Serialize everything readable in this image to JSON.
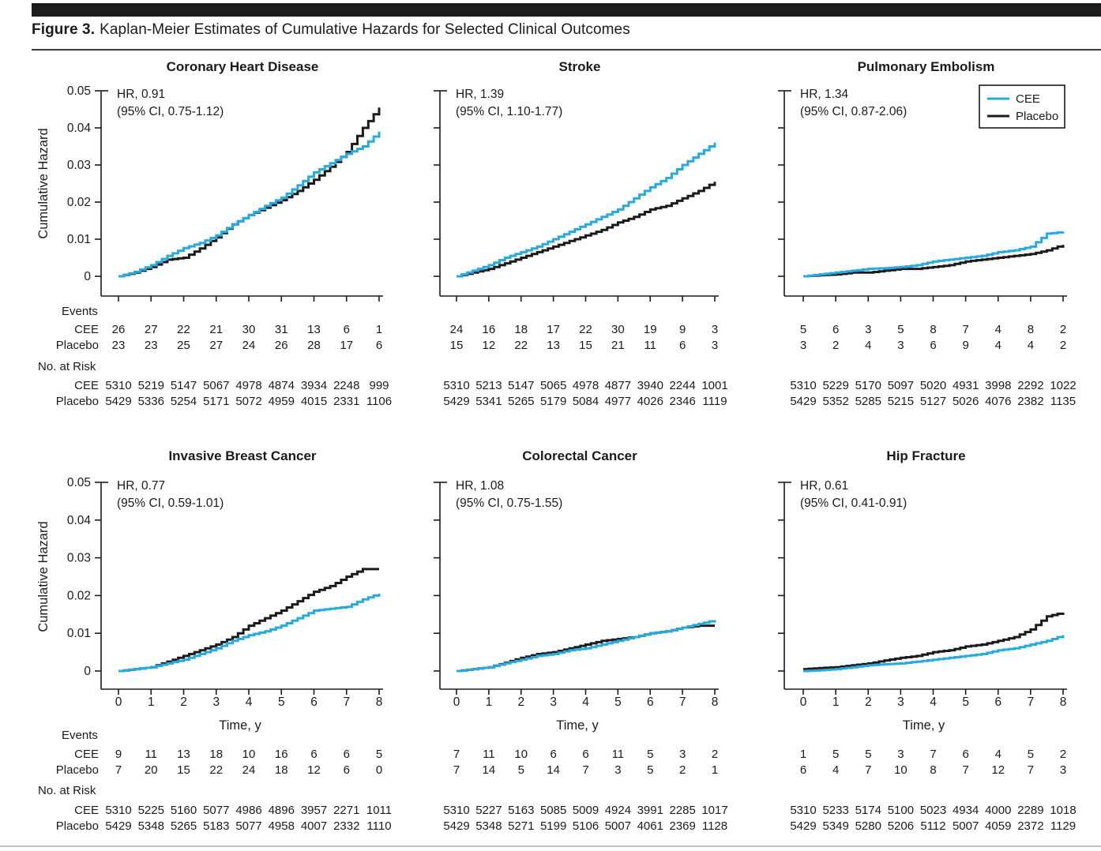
{
  "figure": {
    "label": "Figure 3.",
    "title": "Kaplan-Meier Estimates of Cumulative Hazards for Selected Clinical Outcomes"
  },
  "colors": {
    "cee": "#29A9DC",
    "placebo": "#1b1b1b",
    "axis": "#1b1b1b"
  },
  "legend": {
    "cee": "CEE",
    "placebo": "Placebo",
    "position": "top-right-of-pulmonary-embolism-panel"
  },
  "labels": {
    "events": "Events",
    "cee": "CEE",
    "placebo": "Placebo",
    "no_at_risk": "No. at Risk",
    "ylabel": "Cumulative Hazard",
    "xlabel": "Time, y"
  },
  "axes": {
    "ylim": [
      0,
      0.05
    ],
    "yticks": [
      "0",
      "0.01",
      "0.02",
      "0.03",
      "0.04",
      "0.05"
    ],
    "xlim": [
      0,
      8
    ],
    "xticks": [
      "0",
      "1",
      "2",
      "3",
      "4",
      "5",
      "6",
      "7",
      "8"
    ],
    "grid": "off"
  },
  "chart_data": [
    {
      "id": "coronary-heart-disease",
      "title": "Coronary Heart Disease",
      "type": "line",
      "hr": "HR, 0.91",
      "ci": "(95% CI, 0.75-1.12)",
      "x": [
        0,
        0.5,
        1,
        1.5,
        2,
        2.5,
        3,
        3.5,
        4,
        4.5,
        5,
        5.5,
        6,
        6.5,
        7,
        7.5,
        8
      ],
      "series": [
        {
          "name": "CEE",
          "values": [
            0,
            0.0012,
            0.003,
            0.0055,
            0.0076,
            0.009,
            0.011,
            0.014,
            0.0165,
            0.019,
            0.0212,
            0.0245,
            0.028,
            0.0305,
            0.033,
            0.035,
            0.039
          ]
        },
        {
          "name": "Placebo",
          "values": [
            0,
            0.001,
            0.0025,
            0.0045,
            0.005,
            0.0075,
            0.0105,
            0.014,
            0.0165,
            0.0185,
            0.0205,
            0.023,
            0.026,
            0.0295,
            0.0335,
            0.04,
            0.0455
          ]
        }
      ],
      "events": {
        "CEE": [
          26,
          27,
          22,
          21,
          30,
          31,
          13,
          6,
          1
        ],
        "Placebo": [
          23,
          23,
          25,
          27,
          24,
          26,
          28,
          17,
          6
        ]
      },
      "no_at_risk": {
        "CEE": [
          5310,
          5219,
          5147,
          5067,
          4978,
          4874,
          3934,
          2248,
          999
        ],
        "Placebo": [
          5429,
          5336,
          5254,
          5171,
          5072,
          4959,
          4015,
          2331,
          1106
        ]
      }
    },
    {
      "id": "stroke",
      "title": "Stroke",
      "type": "line",
      "hr": "HR, 1.39",
      "ci": "(95% CI, 1.10-1.77)",
      "x": [
        0,
        0.5,
        1,
        1.5,
        2,
        2.5,
        3,
        3.5,
        4,
        4.5,
        5,
        5.5,
        6,
        6.5,
        7,
        7.5,
        8
      ],
      "series": [
        {
          "name": "CEE",
          "values": [
            0,
            0.0015,
            0.003,
            0.005,
            0.0065,
            0.008,
            0.01,
            0.012,
            0.014,
            0.016,
            0.018,
            0.021,
            0.024,
            0.0265,
            0.03,
            0.033,
            0.036
          ]
        },
        {
          "name": "Placebo",
          "values": [
            0,
            0.001,
            0.002,
            0.0035,
            0.005,
            0.0065,
            0.008,
            0.0095,
            0.011,
            0.0125,
            0.0145,
            0.016,
            0.018,
            0.019,
            0.021,
            0.023,
            0.0255
          ]
        }
      ],
      "events": {
        "CEE": [
          24,
          16,
          18,
          17,
          22,
          30,
          19,
          9,
          3
        ],
        "Placebo": [
          15,
          12,
          22,
          13,
          15,
          21,
          11,
          6,
          3
        ]
      },
      "no_at_risk": {
        "CEE": [
          5310,
          5213,
          5147,
          5065,
          4978,
          4877,
          3940,
          2244,
          1001
        ],
        "Placebo": [
          5429,
          5341,
          5265,
          5179,
          5084,
          4977,
          4026,
          2346,
          1119
        ]
      }
    },
    {
      "id": "pulmonary-embolism",
      "title": "Pulmonary Embolism",
      "type": "line",
      "hr": "HR, 1.34",
      "ci": "(95% CI, 0.87-2.06)",
      "x": [
        0,
        0.5,
        1,
        1.5,
        2,
        2.5,
        3,
        3.5,
        4,
        4.5,
        5,
        5.5,
        6,
        6.5,
        7,
        7.5,
        8
      ],
      "series": [
        {
          "name": "CEE",
          "values": [
            0,
            0.0005,
            0.001,
            0.0015,
            0.002,
            0.0022,
            0.0025,
            0.003,
            0.004,
            0.0045,
            0.005,
            0.0055,
            0.0065,
            0.007,
            0.008,
            0.0115,
            0.012
          ]
        },
        {
          "name": "Placebo",
          "values": [
            0,
            0.0003,
            0.0005,
            0.001,
            0.001,
            0.0015,
            0.002,
            0.002,
            0.0025,
            0.003,
            0.004,
            0.0045,
            0.005,
            0.0055,
            0.006,
            0.007,
            0.0085
          ]
        }
      ],
      "events": {
        "CEE": [
          5,
          6,
          3,
          5,
          8,
          7,
          4,
          8,
          2
        ],
        "Placebo": [
          3,
          2,
          4,
          3,
          6,
          9,
          4,
          4,
          2
        ]
      },
      "no_at_risk": {
        "CEE": [
          5310,
          5229,
          5170,
          5097,
          5020,
          4931,
          3998,
          2292,
          1022
        ],
        "Placebo": [
          5429,
          5352,
          5285,
          5215,
          5127,
          5026,
          4076,
          2382,
          1135
        ]
      }
    },
    {
      "id": "invasive-breast-cancer",
      "title": "Invasive Breast Cancer",
      "type": "line",
      "hr": "HR, 0.77",
      "ci": "(95% CI, 0.59-1.01)",
      "x": [
        0,
        0.5,
        1,
        1.5,
        2,
        2.5,
        3,
        3.5,
        4,
        4.5,
        5,
        5.5,
        6,
        6.5,
        7,
        7.5,
        8
      ],
      "series": [
        {
          "name": "CEE",
          "values": [
            0,
            0.0005,
            0.001,
            0.002,
            0.003,
            0.0045,
            0.006,
            0.008,
            0.0095,
            0.0105,
            0.012,
            0.014,
            0.016,
            0.0165,
            0.017,
            0.019,
            0.0205
          ]
        },
        {
          "name": "Placebo",
          "values": [
            0,
            0.0005,
            0.001,
            0.0025,
            0.004,
            0.0055,
            0.007,
            0.009,
            0.012,
            0.014,
            0.016,
            0.0185,
            0.021,
            0.0225,
            0.025,
            0.027,
            0.027
          ]
        }
      ],
      "events": {
        "CEE": [
          9,
          11,
          13,
          18,
          10,
          16,
          6,
          6,
          5
        ],
        "Placebo": [
          7,
          20,
          15,
          22,
          24,
          18,
          12,
          6,
          0
        ]
      },
      "no_at_risk": {
        "CEE": [
          5310,
          5225,
          5160,
          5077,
          4986,
          4896,
          3957,
          2271,
          1011
        ],
        "Placebo": [
          5429,
          5348,
          5265,
          5183,
          5077,
          4958,
          4007,
          2332,
          1110
        ]
      }
    },
    {
      "id": "colorectal-cancer",
      "title": "Colorectal Cancer",
      "type": "line",
      "hr": "HR, 1.08",
      "ci": "(95% CI, 0.75-1.55)",
      "x": [
        0,
        0.5,
        1,
        1.5,
        2,
        2.5,
        3,
        3.5,
        4,
        4.5,
        5,
        5.5,
        6,
        6.5,
        7,
        7.5,
        8
      ],
      "series": [
        {
          "name": "CEE",
          "values": [
            0,
            0.0005,
            0.001,
            0.002,
            0.003,
            0.004,
            0.0045,
            0.0055,
            0.006,
            0.007,
            0.008,
            0.009,
            0.01,
            0.0105,
            0.0115,
            0.0125,
            0.0135
          ]
        },
        {
          "name": "Placebo",
          "values": [
            0,
            0.0005,
            0.001,
            0.0022,
            0.0035,
            0.0045,
            0.005,
            0.006,
            0.007,
            0.008,
            0.0085,
            0.009,
            0.01,
            0.0105,
            0.0115,
            0.012,
            0.012
          ]
        }
      ],
      "events": {
        "CEE": [
          7,
          11,
          10,
          6,
          6,
          11,
          5,
          3,
          2
        ],
        "Placebo": [
          7,
          14,
          5,
          14,
          7,
          3,
          5,
          2,
          1
        ]
      },
      "no_at_risk": {
        "CEE": [
          5310,
          5227,
          5163,
          5085,
          5009,
          4924,
          3991,
          2285,
          1017
        ],
        "Placebo": [
          5429,
          5348,
          5271,
          5199,
          5106,
          5007,
          4061,
          2369,
          1128
        ]
      }
    },
    {
      "id": "hip-fracture",
      "title": "Hip Fracture",
      "type": "line",
      "hr": "HR, 0.61",
      "ci": "(95% CI, 0.41-0.91)",
      "x": [
        0,
        0.5,
        1,
        1.5,
        2,
        2.5,
        3,
        3.5,
        4,
        4.5,
        5,
        5.5,
        6,
        6.5,
        7,
        7.5,
        8
      ],
      "series": [
        {
          "name": "CEE",
          "values": [
            0,
            0.0002,
            0.0005,
            0.001,
            0.0015,
            0.0018,
            0.002,
            0.0025,
            0.003,
            0.0035,
            0.004,
            0.0045,
            0.0055,
            0.006,
            0.007,
            0.008,
            0.0095
          ]
        },
        {
          "name": "Placebo",
          "values": [
            0.0005,
            0.0008,
            0.001,
            0.0015,
            0.002,
            0.0028,
            0.0035,
            0.004,
            0.005,
            0.0055,
            0.0065,
            0.007,
            0.008,
            0.009,
            0.011,
            0.0145,
            0.0155
          ]
        }
      ],
      "events": {
        "CEE": [
          1,
          5,
          5,
          3,
          7,
          6,
          4,
          5,
          2
        ],
        "Placebo": [
          6,
          4,
          7,
          10,
          8,
          7,
          12,
          7,
          3
        ]
      },
      "no_at_risk": {
        "CEE": [
          5310,
          5233,
          5174,
          5100,
          5023,
          4934,
          4000,
          2289,
          1018
        ],
        "Placebo": [
          5429,
          5349,
          5280,
          5206,
          5112,
          5007,
          4059,
          2372,
          1129
        ]
      }
    }
  ]
}
